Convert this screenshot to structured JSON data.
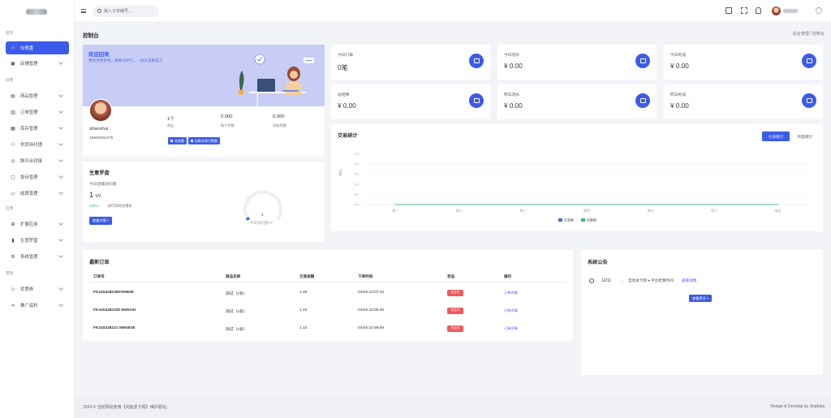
{
  "sidebar": {
    "sections": [
      {
        "label": "首页",
        "items": [
          {
            "label": "仪表盘",
            "icon": "home-icon",
            "active": true
          },
          {
            "label": "店铺管理",
            "icon": "shop-icon"
          }
        ]
      },
      {
        "label": "运营",
        "items": [
          {
            "label": "商品管理",
            "icon": "box-icon"
          },
          {
            "label": "订单管理",
            "icon": "order-icon"
          },
          {
            "label": "库存管理",
            "icon": "stock-icon"
          },
          {
            "label": "供货商代理",
            "icon": "users-icon"
          },
          {
            "label": "跨平台对接",
            "icon": "globe-icon"
          },
          {
            "label": "投诉管理",
            "icon": "complaint-icon"
          },
          {
            "label": "结算管理",
            "icon": "wallet-icon"
          }
        ]
      },
      {
        "label": "应用",
        "items": [
          {
            "label": "扩展应用",
            "icon": "apps-icon"
          },
          {
            "label": "生意罗盘",
            "icon": "bar-chart-icon"
          },
          {
            "label": "系统管理",
            "icon": "gear-icon"
          }
        ]
      },
      {
        "label": "营销",
        "items": [
          {
            "label": "优惠券",
            "icon": "tag-icon"
          },
          {
            "label": "推广返利",
            "icon": "share-icon"
          }
        ]
      }
    ]
  },
  "topbar": {
    "search_placeholder": "输入订单编号..."
  },
  "page": {
    "title": "控制台",
    "breadcrumb": "后台管理 / 控制台"
  },
  "welcome": {
    "title": "欢迎回来",
    "subtitle": "我觉你有梦想，那要守护它。 - 功夫电影名言",
    "name": "shanshui",
    "phone": "16600251275",
    "stats": [
      {
        "value": "1个",
        "label": "商品"
      },
      {
        "value": "0.000",
        "label": "账户余额"
      },
      {
        "value": "0.000",
        "label": "冻结余额"
      }
    ],
    "buttons": [
      "充钱看",
      "自助交易付费看"
    ]
  },
  "stat_cards": [
    {
      "label": "今日订单",
      "value": "0笔"
    },
    {
      "label": "今日流水",
      "value": "¥ 0.00"
    },
    {
      "label": "今日利润",
      "value": "¥ 0.00"
    },
    {
      "label": "总结算",
      "value": "¥ 0.00"
    },
    {
      "label": "昨日流水",
      "value": "¥ 0.00"
    },
    {
      "label": "昨日利润",
      "value": "¥ 0.00"
    }
  ],
  "business": {
    "title": "生意罗盘",
    "sub": "今日店铺访问量",
    "uv": "1",
    "uv_unit": "UV",
    "compare_pct": "100% ↑",
    "compare_text": "与昨日同比增长",
    "button": "查看详情 >",
    "gauge_value": "1",
    "gauge_label": "今日访问量PV"
  },
  "chart": {
    "title": "交易统计",
    "tabs": [
      "七日统计",
      "月度统计"
    ],
    "ylabel": "金额",
    "legend": [
      "交易额",
      "结算额"
    ],
    "colors": {
      "trade": "#5470c6",
      "settle": "#3bba8a"
    }
  },
  "chart_data": {
    "type": "line",
    "categories": [
      "周一",
      "周二",
      "周三",
      "周四",
      "周五",
      "周六",
      "周日"
    ],
    "yticks": [
      "1.0",
      "0.8",
      "0.6",
      "0.4",
      "0.2",
      "0.0"
    ],
    "ylim": [
      0,
      1
    ],
    "series": [
      {
        "name": "交易额",
        "values": [
          0,
          0,
          0,
          0,
          0,
          0,
          0
        ]
      },
      {
        "name": "结算额",
        "values": [
          0,
          0,
          0,
          0,
          0,
          0,
          0
        ]
      }
    ]
  },
  "orders": {
    "title": "最新订单",
    "headers": [
      "订单号",
      "商品名称",
      "交易金额",
      "下单时间",
      "状态",
      "操作"
    ],
    "rows": [
      {
        "id": "FK2404282390VDBDE",
        "product": "测试（1张）",
        "amount": "1.00",
        "time": "04/28 23:07:43",
        "status": "未支付",
        "action": "订单详情"
      },
      {
        "id": "FK2404282330 6WKGH",
        "product": "测试（1张）",
        "amount": "1.10",
        "time": "04/28 23:05:46",
        "status": "未支付",
        "action": "订单详情"
      },
      {
        "id": "FK240428221 0MKBS8",
        "product": "测试（1张）",
        "amount": "1.10",
        "time": "04/28 22:59:08",
        "status": "未支付",
        "action": "订单详情"
      }
    ]
  },
  "notice": {
    "title": "系统公告",
    "date": "12/11",
    "text": "自动发卡网 ● 平台结算时间",
    "link": "查看详情",
    "more": "查看更多 >"
  },
  "footer": {
    "left": "2024 © 当前网站使用【闲鱼发卡网】维护驱动。",
    "right": "Design & Develop by Jingfaka"
  },
  "accent": "#3c5bea"
}
